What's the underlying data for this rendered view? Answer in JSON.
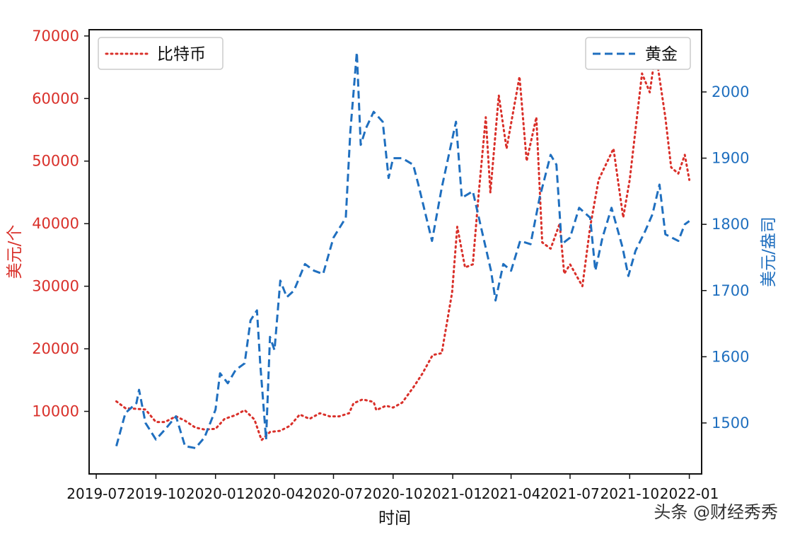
{
  "chart_data": {
    "type": "line",
    "xlabel": "时间",
    "ylabel_left": "美元/个",
    "ylabel_right": "美元/盎司",
    "x_ticks": [
      "2019-07",
      "2019-10",
      "2020-01",
      "2020-04",
      "2020-07",
      "2020-10",
      "2021-01",
      "2021-04",
      "2021-07",
      "2021-10",
      "2022-01"
    ],
    "y_left_ticks": [
      10000,
      20000,
      30000,
      40000,
      50000,
      60000,
      70000
    ],
    "y_right_ticks": [
      1500,
      1600,
      1700,
      1800,
      1900,
      2000
    ],
    "xlim": [
      "2019-06-20",
      "2022-01-20"
    ],
    "ylim_left": [
      0,
      71000
    ],
    "ylim_right": [
      1423,
      2094
    ],
    "legend_left": "top-left",
    "legend_right": "top-right",
    "grid": false,
    "series": [
      {
        "name": "比特币",
        "axis": "left",
        "color": "#d9302a",
        "style": "dotted",
        "points": [
          [
            "2019-08-01",
            11600
          ],
          [
            "2019-08-15",
            10500
          ],
          [
            "2019-09-01",
            10400
          ],
          [
            "2019-09-15",
            10300
          ],
          [
            "2019-10-01",
            8300
          ],
          [
            "2019-10-15",
            8300
          ],
          [
            "2019-11-01",
            9200
          ],
          [
            "2019-11-15",
            8500
          ],
          [
            "2019-12-01",
            7400
          ],
          [
            "2019-12-15",
            7100
          ],
          [
            "2020-01-01",
            7200
          ],
          [
            "2020-01-15",
            8800
          ],
          [
            "2020-02-01",
            9400
          ],
          [
            "2020-02-15",
            10200
          ],
          [
            "2020-03-01",
            8700
          ],
          [
            "2020-03-12",
            5400
          ],
          [
            "2020-03-25",
            6700
          ],
          [
            "2020-04-10",
            6900
          ],
          [
            "2020-04-25",
            7700
          ],
          [
            "2020-05-10",
            9500
          ],
          [
            "2020-05-25",
            8800
          ],
          [
            "2020-06-10",
            9700
          ],
          [
            "2020-06-25",
            9200
          ],
          [
            "2020-07-10",
            9200
          ],
          [
            "2020-07-25",
            9700
          ],
          [
            "2020-08-01",
            11300
          ],
          [
            "2020-08-15",
            11900
          ],
          [
            "2020-09-01",
            11500
          ],
          [
            "2020-09-05",
            10200
          ],
          [
            "2020-09-20",
            10900
          ],
          [
            "2020-10-01",
            10600
          ],
          [
            "2020-10-15",
            11400
          ],
          [
            "2020-11-01",
            13800
          ],
          [
            "2020-11-15",
            16000
          ],
          [
            "2020-12-01",
            19000
          ],
          [
            "2020-12-15",
            19300
          ],
          [
            "2020-12-31",
            29000
          ],
          [
            "2021-01-08",
            39500
          ],
          [
            "2021-01-20",
            33000
          ],
          [
            "2021-02-01",
            33500
          ],
          [
            "2021-02-10",
            44800
          ],
          [
            "2021-02-21",
            57000
          ],
          [
            "2021-02-28",
            45000
          ],
          [
            "2021-03-13",
            60500
          ],
          [
            "2021-03-25",
            52000
          ],
          [
            "2021-04-14",
            63500
          ],
          [
            "2021-04-25",
            50000
          ],
          [
            "2021-05-10",
            57000
          ],
          [
            "2021-05-19",
            37000
          ],
          [
            "2021-06-01",
            36000
          ],
          [
            "2021-06-15",
            40000
          ],
          [
            "2021-06-22",
            32000
          ],
          [
            "2021-07-01",
            33500
          ],
          [
            "2021-07-20",
            30000
          ],
          [
            "2021-08-01",
            39500
          ],
          [
            "2021-08-14",
            47000
          ],
          [
            "2021-09-06",
            52000
          ],
          [
            "2021-09-21",
            41000
          ],
          [
            "2021-10-01",
            47000
          ],
          [
            "2021-10-20",
            64000
          ],
          [
            "2021-11-01",
            61000
          ],
          [
            "2021-11-10",
            67500
          ],
          [
            "2021-11-25",
            57000
          ],
          [
            "2021-12-04",
            49000
          ],
          [
            "2021-12-15",
            48000
          ],
          [
            "2021-12-25",
            51000
          ],
          [
            "2022-01-01",
            47000
          ]
        ]
      },
      {
        "name": "黄金",
        "axis": "right",
        "color": "#1f6fbf",
        "style": "dashed",
        "points": [
          [
            "2019-08-01",
            1465
          ],
          [
            "2019-08-15",
            1515
          ],
          [
            "2019-09-01",
            1530
          ],
          [
            "2019-09-05",
            1550
          ],
          [
            "2019-09-15",
            1500
          ],
          [
            "2019-10-01",
            1475
          ],
          [
            "2019-10-15",
            1490
          ],
          [
            "2019-11-01",
            1510
          ],
          [
            "2019-11-15",
            1465
          ],
          [
            "2019-12-01",
            1462
          ],
          [
            "2019-12-15",
            1478
          ],
          [
            "2020-01-01",
            1520
          ],
          [
            "2020-01-08",
            1575
          ],
          [
            "2020-01-20",
            1560
          ],
          [
            "2020-02-01",
            1580
          ],
          [
            "2020-02-15",
            1590
          ],
          [
            "2020-02-24",
            1655
          ],
          [
            "2020-03-05",
            1670
          ],
          [
            "2020-03-10",
            1590
          ],
          [
            "2020-03-19",
            1475
          ],
          [
            "2020-03-25",
            1630
          ],
          [
            "2020-04-01",
            1610
          ],
          [
            "2020-04-10",
            1715
          ],
          [
            "2020-04-20",
            1690
          ],
          [
            "2020-05-01",
            1700
          ],
          [
            "2020-05-18",
            1740
          ],
          [
            "2020-06-01",
            1730
          ],
          [
            "2020-06-15",
            1725
          ],
          [
            "2020-07-01",
            1780
          ],
          [
            "2020-07-20",
            1810
          ],
          [
            "2020-07-27",
            1940
          ],
          [
            "2020-08-06",
            2060
          ],
          [
            "2020-08-12",
            1920
          ],
          [
            "2020-08-20",
            1945
          ],
          [
            "2020-09-01",
            1970
          ],
          [
            "2020-09-15",
            1955
          ],
          [
            "2020-09-24",
            1870
          ],
          [
            "2020-10-01",
            1900
          ],
          [
            "2020-10-15",
            1900
          ],
          [
            "2020-11-01",
            1890
          ],
          [
            "2020-11-09",
            1860
          ],
          [
            "2020-11-30",
            1775
          ],
          [
            "2020-12-15",
            1855
          ],
          [
            "2021-01-06",
            1955
          ],
          [
            "2021-01-15",
            1840
          ],
          [
            "2021-02-01",
            1850
          ],
          [
            "2021-02-15",
            1790
          ],
          [
            "2021-03-01",
            1730
          ],
          [
            "2021-03-08",
            1685
          ],
          [
            "2021-03-20",
            1740
          ],
          [
            "2021-04-01",
            1730
          ],
          [
            "2021-04-15",
            1775
          ],
          [
            "2021-05-01",
            1770
          ],
          [
            "2021-05-15",
            1840
          ],
          [
            "2021-06-01",
            1905
          ],
          [
            "2021-06-10",
            1890
          ],
          [
            "2021-06-18",
            1770
          ],
          [
            "2021-07-01",
            1780
          ],
          [
            "2021-07-15",
            1825
          ],
          [
            "2021-08-01",
            1810
          ],
          [
            "2021-08-09",
            1730
          ],
          [
            "2021-08-20",
            1780
          ],
          [
            "2021-09-03",
            1825
          ],
          [
            "2021-09-20",
            1765
          ],
          [
            "2021-09-29",
            1722
          ],
          [
            "2021-10-10",
            1760
          ],
          [
            "2021-10-25",
            1790
          ],
          [
            "2021-11-05",
            1815
          ],
          [
            "2021-11-16",
            1860
          ],
          [
            "2021-11-25",
            1785
          ],
          [
            "2021-12-15",
            1775
          ],
          [
            "2021-12-25",
            1800
          ],
          [
            "2022-01-01",
            1805
          ]
        ]
      }
    ]
  },
  "watermark": "头条 @财经秀秀"
}
